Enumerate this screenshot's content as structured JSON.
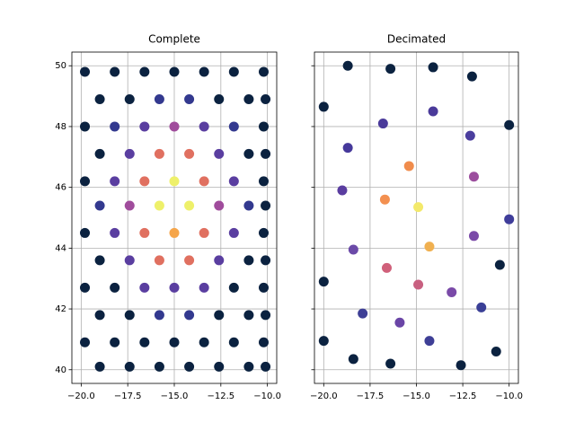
{
  "chart_data": [
    {
      "type": "scatter",
      "title": "Complete",
      "x": [
        -19.8,
        -18.2,
        -16.6,
        -15,
        -13.4,
        -11.8,
        -10.2,
        -19,
        -17.4,
        -15.8,
        -14.2,
        -12.6,
        -11,
        -10.1,
        -19.8,
        -18.2,
        -16.6,
        -15,
        -13.4,
        -11.8,
        -10.2,
        -19,
        -17.4,
        -15.8,
        -14.2,
        -12.6,
        -11,
        -10.1,
        -19.8,
        -18.2,
        -16.6,
        -15,
        -13.4,
        -11.8,
        -10.2,
        -19,
        -17.4,
        -15.8,
        -14.2,
        -12.6,
        -11,
        -10.1,
        -19.8,
        -18.2,
        -16.6,
        -15,
        -13.4,
        -11.8,
        -10.2,
        -19,
        -17.4,
        -15.8,
        -14.2,
        -12.6,
        -11,
        -10.1,
        -19.8,
        -18.2,
        -16.6,
        -15,
        -13.4,
        -11.8,
        -10.2,
        -19,
        -17.4,
        -15.8,
        -14.2,
        -12.6,
        -11,
        -10.1,
        -19.8,
        -18.2,
        -16.6,
        -15,
        -13.4,
        -11.8,
        -10.2,
        -19,
        -17.4,
        -15.8,
        -14.2,
        -12.6,
        -11,
        -10.1
      ],
      "y": [
        49.8,
        49.8,
        49.8,
        49.8,
        49.8,
        49.8,
        49.8,
        48.9,
        48.9,
        48.9,
        48.9,
        48.9,
        48.9,
        48.9,
        48,
        48,
        48,
        48,
        48,
        48,
        48,
        47.1,
        47.1,
        47.1,
        47.1,
        47.1,
        47.1,
        47.1,
        46.2,
        46.2,
        46.2,
        46.2,
        46.2,
        46.2,
        46.2,
        45.4,
        45.4,
        45.4,
        45.4,
        45.4,
        45.4,
        45.4,
        44.5,
        44.5,
        44.5,
        44.5,
        44.5,
        44.5,
        44.5,
        43.6,
        43.6,
        43.6,
        43.6,
        43.6,
        43.6,
        43.6,
        42.7,
        42.7,
        42.7,
        42.7,
        42.7,
        42.7,
        42.7,
        41.8,
        41.8,
        41.8,
        41.8,
        41.8,
        41.8,
        41.8,
        40.9,
        40.9,
        40.9,
        40.9,
        40.9,
        40.9,
        40.9,
        40.1,
        40.1,
        40.1,
        40.1,
        40.1,
        40.1,
        40.1
      ],
      "colors": [
        "#0b2240",
        "#0b2240",
        "#0b2240",
        "#0b2240",
        "#0b2240",
        "#0b2240",
        "#0b2240",
        "#0b2240",
        "#0b2240",
        "#33398f",
        "#33398f",
        "#0b2240",
        "#0b2240",
        "#0b2240",
        "#0b2240",
        "#33398f",
        "#5a3ea0",
        "#a04c9c",
        "#5a3ea0",
        "#33398f",
        "#0b2240",
        "#0b2240",
        "#5a3ea0",
        "#e07060",
        "#e07060",
        "#5a3ea0",
        "#0b2240",
        "#0b2240",
        "#0b2240",
        "#5a3ea0",
        "#e07060",
        "#eef06a",
        "#e07060",
        "#5a3ea0",
        "#0b2240",
        "#33398f",
        "#a04c9c",
        "#eef06a",
        "#eef06a",
        "#a04c9c",
        "#33398f",
        "#0b2240",
        "#0b2240",
        "#5a3ea0",
        "#e07060",
        "#f5a54a",
        "#e07060",
        "#5a3ea0",
        "#0b2240",
        "#0b2240",
        "#5a3ea0",
        "#e07060",
        "#e07060",
        "#5a3ea0",
        "#0b2240",
        "#0b2240",
        "#0b2240",
        "#0b2240",
        "#5a3ea0",
        "#5a3ea0",
        "#5a3ea0",
        "#0b2240",
        "#0b2240",
        "#0b2240",
        "#0b2240",
        "#33398f",
        "#33398f",
        "#0b2240",
        "#0b2240",
        "#0b2240",
        "#0b2240",
        "#0b2240",
        "#0b2240",
        "#0b2240",
        "#0b2240",
        "#0b2240",
        "#0b2240",
        "#0b2240",
        "#0b2240",
        "#0b2240",
        "#0b2240",
        "#0b2240",
        "#0b2240",
        "#0b2240"
      ],
      "xlim": [
        -20.5,
        -9.5
      ],
      "ylim": [
        39.55,
        50.45
      ],
      "xticks": [
        {
          "value": -20,
          "label": "−20.0"
        },
        {
          "value": -17.5,
          "label": "−17.5"
        },
        {
          "value": -15,
          "label": "−15.0"
        },
        {
          "value": -12.5,
          "label": "−12.5"
        },
        {
          "value": -10,
          "label": "−10.0"
        }
      ],
      "yticks": [
        40,
        42,
        44,
        46,
        48,
        50
      ],
      "ytick_labels": true,
      "grid": true
    },
    {
      "type": "scatter",
      "title": "Decimated",
      "x": [
        -18.7,
        -16.4,
        -14.1,
        -12,
        -20,
        -10,
        -16.8,
        -14.1,
        -18.7,
        -12.1,
        -15.4,
        -11.9,
        -19,
        -16.7,
        -14.9,
        -10,
        -18.4,
        -14.3,
        -11.9,
        -10.5,
        -16.6,
        -20,
        -14.9,
        -13.1,
        -11.5,
        -17.9,
        -15.9,
        -20,
        -14.3,
        -10.7,
        -18.4,
        -16.4,
        -12.6
      ],
      "y": [
        50,
        49.9,
        49.95,
        49.65,
        48.65,
        48.05,
        48.1,
        48.5,
        47.3,
        47.7,
        46.7,
        46.35,
        45.9,
        45.6,
        45.35,
        44.95,
        43.95,
        44.05,
        44.4,
        43.45,
        43.35,
        42.9,
        42.8,
        42.55,
        42.05,
        41.85,
        41.55,
        40.95,
        40.95,
        40.6,
        40.35,
        40.2,
        40.15
      ],
      "colors": [
        "#0b2240",
        "#0b2240",
        "#0b2240",
        "#0b2240",
        "#0b2240",
        "#0b2240",
        "#4a3a9a",
        "#4a3a9a",
        "#46399b",
        "#4b3e9e",
        "#f08c4c",
        "#9c4e9e",
        "#5a3da0",
        "#f39050",
        "#f3e96b",
        "#3f3d9a",
        "#6b4aa8",
        "#f0b050",
        "#7a4aa8",
        "#0b2240",
        "#d0607a",
        "#0b2240",
        "#c86080",
        "#7a4aa8",
        "#3a3f96",
        "#3e3f96",
        "#6a45a6",
        "#0b2240",
        "#3e3f96",
        "#0b2240",
        "#0b2240",
        "#0b2240",
        "#0b2240"
      ],
      "xlim": [
        -20.5,
        -9.5
      ],
      "ylim": [
        39.55,
        50.45
      ],
      "xticks": [
        {
          "value": -20,
          "label": "−20.0"
        },
        {
          "value": -17.5,
          "label": "−17.5"
        },
        {
          "value": -15,
          "label": "−15.0"
        },
        {
          "value": -12.5,
          "label": "−12.5"
        },
        {
          "value": -10,
          "label": "−10.0"
        }
      ],
      "yticks": [
        40,
        42,
        44,
        46,
        48,
        50
      ],
      "ytick_labels": false,
      "grid": true
    }
  ]
}
